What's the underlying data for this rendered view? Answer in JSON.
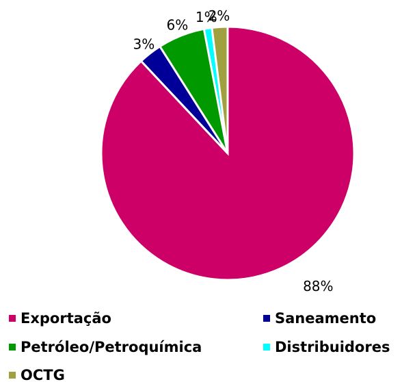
{
  "chart_data": {
    "type": "pie",
    "categories": [
      "Exportação",
      "Saneamento",
      "Petróleo/Petroquímica",
      "Distribuidores",
      "OCTG"
    ],
    "values": [
      88,
      3,
      6,
      1,
      2
    ],
    "value_labels": [
      "88%",
      "3%",
      "6%",
      "1%",
      "2%"
    ],
    "colors": [
      "#cc0066",
      "#000099",
      "#009900",
      "#00ffff",
      "#a0a040"
    ],
    "legend": "bottom"
  }
}
